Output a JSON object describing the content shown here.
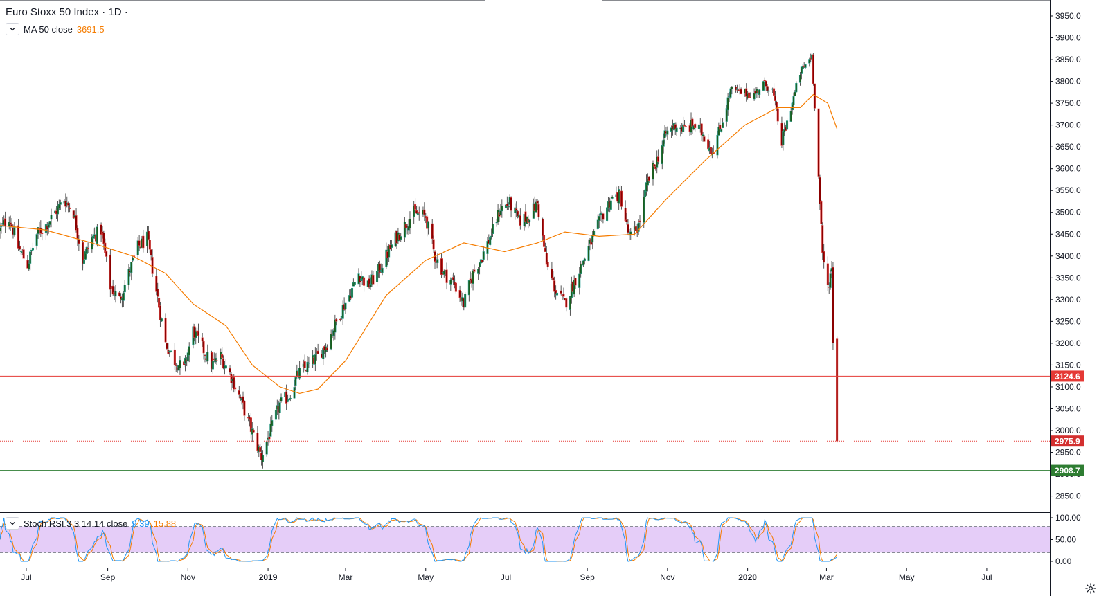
{
  "header": {
    "title": "Euro Stoxx 50 Index · 1D ·",
    "ma_label": "MA 50 close",
    "ma_value": "3691.5",
    "stoch_label": "Stoch RSI 3 3 14 14 close",
    "stoch_k_value": "9.39",
    "stoch_d_value": "15.88"
  },
  "icons": {
    "collapse": "chevron-down-icon",
    "settings": "gear-icon"
  },
  "colors": {
    "up": "#26a69a",
    "down": "#ef5350",
    "candle_body": "#1b5e20",
    "candle_body_down": "#8b0000",
    "ma": "#f57c00",
    "level_red": "#e53935",
    "level_green": "#2e7d32",
    "last_price": "#d32f2f",
    "stoch_k": "#2196f3",
    "stoch_d": "#f57c00",
    "stoch_band": "#e1c4f7"
  },
  "chart_data": [
    {
      "type": "candlestick",
      "title": "Euro Stoxx 50 Index",
      "interval": "1D",
      "y_ticks": [
        2850,
        2900,
        2950,
        3000,
        3050,
        3100,
        3150,
        3200,
        3250,
        3300,
        3350,
        3400,
        3450,
        3500,
        3550,
        3600,
        3650,
        3700,
        3750,
        3800,
        3850,
        3900,
        3950
      ],
      "y_tick_labels": [
        "2850.0",
        "2900.0",
        "2950.0",
        "3000.0",
        "3050.0",
        "3100.0",
        "3150.0",
        "3200.0",
        "3250.0",
        "3300.0",
        "3350.0",
        "3400.0",
        "3450.0",
        "3500.0",
        "3550.0",
        "3600.0",
        "3650.0",
        "3700.0",
        "3750.0",
        "3800.0",
        "3850.0",
        "3900.0",
        "3950.0"
      ],
      "ylim": [
        2820,
        3985
      ],
      "x_ticks": [
        "Jul",
        "Sep",
        "Nov",
        "2019",
        "Mar",
        "May",
        "Jul",
        "Sep",
        "Nov",
        "2020",
        "Mar",
        "May",
        "Jul"
      ],
      "x_tick_dates": [
        "2018-07-01",
        "2018-09-01",
        "2018-11-01",
        "2019-01-01",
        "2019-03-01",
        "2019-05-01",
        "2019-07-01",
        "2019-09-01",
        "2019-11-01",
        "2020-01-01",
        "2020-03-01",
        "2020-05-01",
        "2020-07-01"
      ],
      "xlim": [
        "2018-06-11",
        "2020-08-18"
      ],
      "close_path": [
        [
          "2018-06-11",
          3460
        ],
        [
          "2018-06-18",
          3490
        ],
        [
          "2018-06-25",
          3420
        ],
        [
          "2018-07-02",
          3380
        ],
        [
          "2018-07-09",
          3450
        ],
        [
          "2018-07-16",
          3470
        ],
        [
          "2018-07-23",
          3500
        ],
        [
          "2018-07-30",
          3530
        ],
        [
          "2018-08-06",
          3500
        ],
        [
          "2018-08-13",
          3390
        ],
        [
          "2018-08-20",
          3440
        ],
        [
          "2018-08-27",
          3460
        ],
        [
          "2018-09-03",
          3330
        ],
        [
          "2018-09-10",
          3300
        ],
        [
          "2018-09-17",
          3360
        ],
        [
          "2018-09-24",
          3420
        ],
        [
          "2018-10-01",
          3440
        ],
        [
          "2018-10-08",
          3320
        ],
        [
          "2018-10-15",
          3200
        ],
        [
          "2018-10-22",
          3160
        ],
        [
          "2018-10-29",
          3140
        ],
        [
          "2018-11-05",
          3230
        ],
        [
          "2018-11-12",
          3190
        ],
        [
          "2018-11-19",
          3150
        ],
        [
          "2018-11-26",
          3170
        ],
        [
          "2018-12-03",
          3130
        ],
        [
          "2018-12-10",
          3080
        ],
        [
          "2018-12-17",
          3020
        ],
        [
          "2018-12-27",
          2940
        ],
        [
          "2019-01-03",
          3000
        ],
        [
          "2019-01-10",
          3060
        ],
        [
          "2019-01-17",
          3080
        ],
        [
          "2019-01-24",
          3130
        ],
        [
          "2019-02-01",
          3150
        ],
        [
          "2019-02-08",
          3170
        ],
        [
          "2019-02-15",
          3200
        ],
        [
          "2019-02-25",
          3270
        ],
        [
          "2019-03-04",
          3310
        ],
        [
          "2019-03-11",
          3360
        ],
        [
          "2019-03-18",
          3330
        ],
        [
          "2019-03-25",
          3360
        ],
        [
          "2019-04-01",
          3400
        ],
        [
          "2019-04-08",
          3440
        ],
        [
          "2019-04-15",
          3470
        ],
        [
          "2019-04-22",
          3500
        ],
        [
          "2019-05-01",
          3490
        ],
        [
          "2019-05-08",
          3400
        ],
        [
          "2019-05-15",
          3360
        ],
        [
          "2019-05-22",
          3340
        ],
        [
          "2019-05-30",
          3290
        ],
        [
          "2019-06-06",
          3360
        ],
        [
          "2019-06-13",
          3400
        ],
        [
          "2019-06-20",
          3450
        ],
        [
          "2019-06-27",
          3510
        ],
        [
          "2019-07-04",
          3520
        ],
        [
          "2019-07-11",
          3480
        ],
        [
          "2019-07-18",
          3490
        ],
        [
          "2019-07-25",
          3520
        ],
        [
          "2019-08-01",
          3380
        ],
        [
          "2019-08-08",
          3320
        ],
        [
          "2019-08-15",
          3290
        ],
        [
          "2019-08-22",
          3340
        ],
        [
          "2019-08-29",
          3390
        ],
        [
          "2019-09-05",
          3440
        ],
        [
          "2019-09-12",
          3490
        ],
        [
          "2019-09-19",
          3530
        ],
        [
          "2019-09-26",
          3540
        ],
        [
          "2019-10-03",
          3440
        ],
        [
          "2019-10-10",
          3470
        ],
        [
          "2019-10-17",
          3570
        ],
        [
          "2019-10-24",
          3620
        ],
        [
          "2019-10-31",
          3680
        ],
        [
          "2019-11-07",
          3700
        ],
        [
          "2019-11-14",
          3690
        ],
        [
          "2019-11-21",
          3700
        ],
        [
          "2019-11-28",
          3680
        ],
        [
          "2019-12-05",
          3640
        ],
        [
          "2019-12-12",
          3700
        ],
        [
          "2019-12-19",
          3780
        ],
        [
          "2019-12-26",
          3775
        ],
        [
          "2020-01-06",
          3770
        ],
        [
          "2020-01-13",
          3795
        ],
        [
          "2020-01-20",
          3780
        ],
        [
          "2020-01-27",
          3660
        ],
        [
          "2020-02-03",
          3740
        ],
        [
          "2020-02-10",
          3820
        ],
        [
          "2020-02-19",
          3860
        ],
        [
          "2020-02-24",
          3580
        ],
        [
          "2020-02-27",
          3400
        ],
        [
          "2020-03-02",
          3330
        ],
        [
          "2020-03-05",
          3370
        ],
        [
          "2020-03-06",
          3210
        ],
        [
          "2020-03-09",
          2975.9
        ]
      ],
      "ma50_path": [
        [
          "2018-06-11",
          3470
        ],
        [
          "2018-07-15",
          3460
        ],
        [
          "2018-08-20",
          3430
        ],
        [
          "2018-09-20",
          3400
        ],
        [
          "2018-10-15",
          3360
        ],
        [
          "2018-11-05",
          3290
        ],
        [
          "2018-11-30",
          3240
        ],
        [
          "2018-12-20",
          3150
        ],
        [
          "2019-01-10",
          3100
        ],
        [
          "2019-01-25",
          3085
        ],
        [
          "2019-02-08",
          3095
        ],
        [
          "2019-03-01",
          3160
        ],
        [
          "2019-04-01",
          3310
        ],
        [
          "2019-05-01",
          3390
        ],
        [
          "2019-05-30",
          3430
        ],
        [
          "2019-06-30",
          3410
        ],
        [
          "2019-07-25",
          3430
        ],
        [
          "2019-08-15",
          3455
        ],
        [
          "2019-09-10",
          3445
        ],
        [
          "2019-10-07",
          3450
        ],
        [
          "2019-10-31",
          3530
        ],
        [
          "2019-11-30",
          3620
        ],
        [
          "2019-12-30",
          3700
        ],
        [
          "2020-01-24",
          3740
        ],
        [
          "2020-02-10",
          3740
        ],
        [
          "2020-02-20",
          3770
        ],
        [
          "2020-03-02",
          3750
        ],
        [
          "2020-03-09",
          3691.5
        ]
      ],
      "levels": [
        {
          "label": "3124.6",
          "value": 3124.6,
          "style": "solid",
          "color": "red"
        },
        {
          "label": "2975.9",
          "value": 2975.9,
          "style": "dotted",
          "color": "red",
          "last_price": true
        },
        {
          "label": "2908.7",
          "value": 2908.7,
          "style": "solid",
          "color": "green"
        }
      ]
    },
    {
      "type": "line",
      "title": "Stoch RSI 3 3 14 14 close",
      "y_ticks": [
        0,
        50,
        100
      ],
      "y_tick_labels": [
        "0.00",
        "50.00",
        "100.00"
      ],
      "bands": [
        20,
        80
      ],
      "ylim": [
        -5,
        105
      ],
      "k_last": 9.39,
      "d_last": 15.88
    }
  ]
}
